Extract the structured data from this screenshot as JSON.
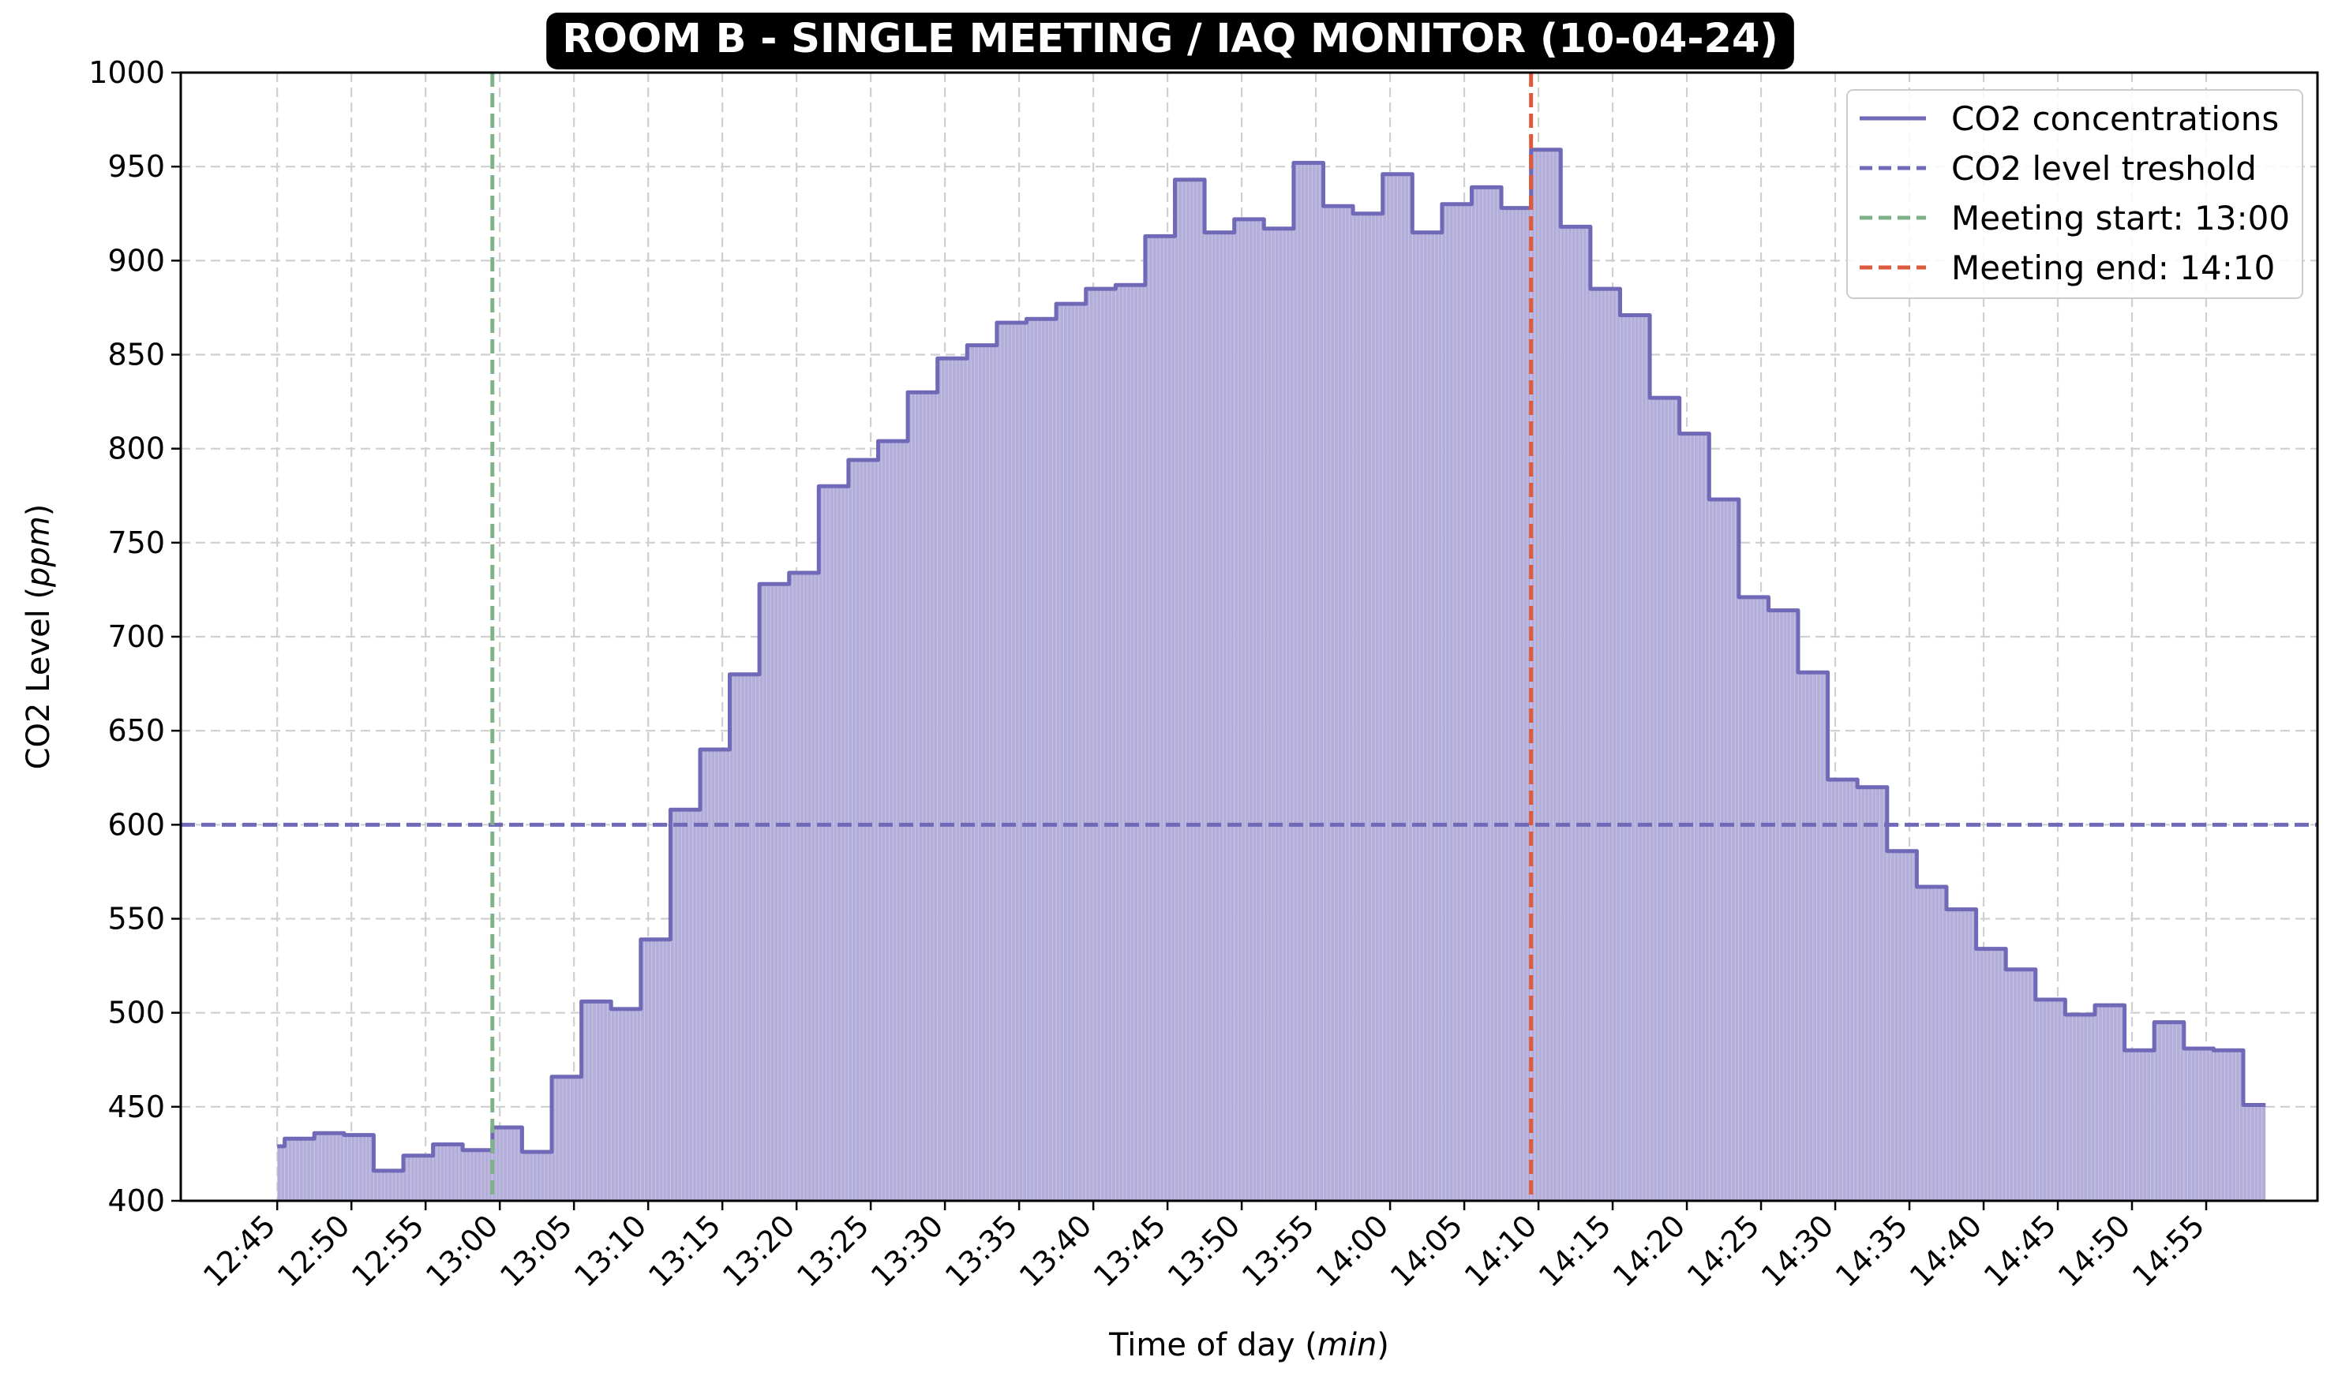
{
  "chart_data": {
    "type": "area",
    "title": "ROOM B - SINGLE MEETING / IAQ MONITOR (10-04-24)",
    "xlabel_main": "Time of day (",
    "xlabel_unit": "min",
    "xlabel_close": ")",
    "ylabel_main": "CO2 Level (",
    "ylabel_unit": "ppm",
    "ylabel_close": ")",
    "ylim": [
      400,
      1000
    ],
    "yticks": [
      400,
      450,
      500,
      550,
      600,
      650,
      700,
      750,
      800,
      850,
      900,
      950,
      1000
    ],
    "xticks": [
      "12:45",
      "12:50",
      "12:55",
      "13:00",
      "13:05",
      "13:10",
      "13:15",
      "13:20",
      "13:25",
      "13:30",
      "13:35",
      "13:40",
      "13:45",
      "13:50",
      "13:55",
      "14:00",
      "14:05",
      "14:10",
      "14:15",
      "14:20",
      "14:25",
      "14:30",
      "14:35",
      "14:40",
      "14:45",
      "14:50",
      "14:55"
    ],
    "xlim": [
      "12:38:30",
      "15:02:30"
    ],
    "x_start": "12:45",
    "x_end": "14:59",
    "grid": true,
    "legend_position": "top-right",
    "series": [
      {
        "name": "CO2 concentrations",
        "color": "#6f69b8",
        "fill_color": "#b3add9",
        "step": true,
        "x": [
          "12:45",
          "12:45:30",
          "12:47:30",
          "12:49:30",
          "12:51:30",
          "12:53:30",
          "12:55:30",
          "12:57:30",
          "12:59:30",
          "13:01:30",
          "13:03:30",
          "13:05:30",
          "13:07:30",
          "13:09:30",
          "13:11:30",
          "13:13:30",
          "13:15:30",
          "13:17:30",
          "13:19:30",
          "13:21:30",
          "13:23:30",
          "13:25:30",
          "13:27:30",
          "13:29:30",
          "13:31:30",
          "13:33:30",
          "13:35:30",
          "13:37:30",
          "13:39:30",
          "13:41:30",
          "13:43:30",
          "13:45:30",
          "13:47:30",
          "13:49:30",
          "13:51:30",
          "13:53:30",
          "13:55:30",
          "13:57:30",
          "13:59:30",
          "14:01:30",
          "14:03:30",
          "14:05:30",
          "14:07:30",
          "14:09:30",
          "14:11:30",
          "14:13:30",
          "14:15:30",
          "14:17:30",
          "14:19:30",
          "14:21:30",
          "14:23:30",
          "14:25:30",
          "14:27:30",
          "14:29:30",
          "14:31:30",
          "14:33:30",
          "14:35:30",
          "14:37:30",
          "14:39:30",
          "14:41:30",
          "14:43:30",
          "14:45:30",
          "14:47:30",
          "14:49:30",
          "14:51:30",
          "14:53:30",
          "14:55:30",
          "14:57:30"
        ],
        "values": [
          429,
          433,
          436,
          435,
          416,
          424,
          430,
          427,
          439,
          426,
          466,
          506,
          502,
          539,
          608,
          640,
          680,
          728,
          734,
          780,
          794,
          804,
          830,
          848,
          855,
          867,
          869,
          877,
          885,
          887,
          913,
          943,
          915,
          922,
          917,
          952,
          929,
          925,
          946,
          915,
          930,
          939,
          928,
          959,
          918,
          885,
          871,
          827,
          808,
          773,
          721,
          714,
          681,
          624,
          620,
          586,
          567,
          555,
          534,
          523,
          507,
          499,
          504,
          480,
          495,
          481,
          480,
          451
        ]
      }
    ],
    "threshold": {
      "name": "CO2 level treshold",
      "value": 600,
      "color": "#6f69b8"
    },
    "events": [
      {
        "name": "Meeting start: 13:00",
        "time": "12:59:30",
        "color": "#7fb387"
      },
      {
        "name": "Meeting end: 14:10",
        "time": "14:09:30",
        "color": "#dd5a3c"
      }
    ]
  }
}
